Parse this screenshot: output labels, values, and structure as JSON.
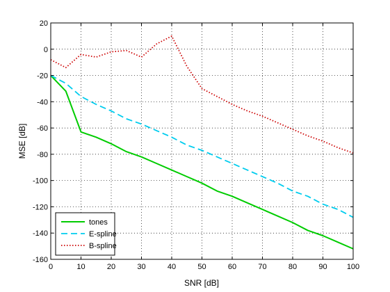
{
  "chart_data": {
    "type": "line",
    "title": "",
    "xlabel": "SNR [dB]",
    "ylabel": "MSE [dB]",
    "xlim": [
      0,
      100
    ],
    "ylim": [
      -160,
      20
    ],
    "xticks": [
      "0",
      "10",
      "20",
      "30",
      "40",
      "50",
      "60",
      "70",
      "80",
      "90",
      "100"
    ],
    "yticks": [
      "20",
      "0",
      "-20",
      "-40",
      "-60",
      "-80",
      "-100",
      "-120",
      "-140",
      "-160"
    ],
    "grid": true,
    "legend_position": "bottom-left",
    "x": [
      0,
      5,
      10,
      15,
      20,
      25,
      30,
      35,
      40,
      45,
      50,
      55,
      60,
      65,
      70,
      75,
      80,
      85,
      90,
      95,
      100
    ],
    "series": [
      {
        "name": "tones",
        "color": "#00cc00",
        "style": "solid",
        "values": [
          -20,
          -32,
          -63,
          -67,
          -72,
          -78,
          -82,
          -87,
          -92,
          -97,
          -102,
          -108,
          -112,
          -117,
          -122,
          -127,
          -132,
          -138,
          -142,
          -147,
          -152
        ]
      },
      {
        "name": "E-spline",
        "color": "#00ccee",
        "style": "dashed",
        "values": [
          -20,
          -26,
          -36,
          -42,
          -47,
          -53,
          -57,
          -62,
          -67,
          -73,
          -77,
          -82,
          -87,
          -92,
          -97,
          -102,
          -108,
          -112,
          -118,
          -122,
          -128
        ]
      },
      {
        "name": "B-spline",
        "color": "#cc0000",
        "style": "dotted",
        "values": [
          -8,
          -14,
          -4,
          -6,
          -2,
          -1,
          -6,
          4,
          10,
          -13,
          -30,
          -36,
          -42,
          -47,
          -51,
          -56,
          -61,
          -66,
          -70,
          -75,
          -79
        ]
      }
    ]
  }
}
